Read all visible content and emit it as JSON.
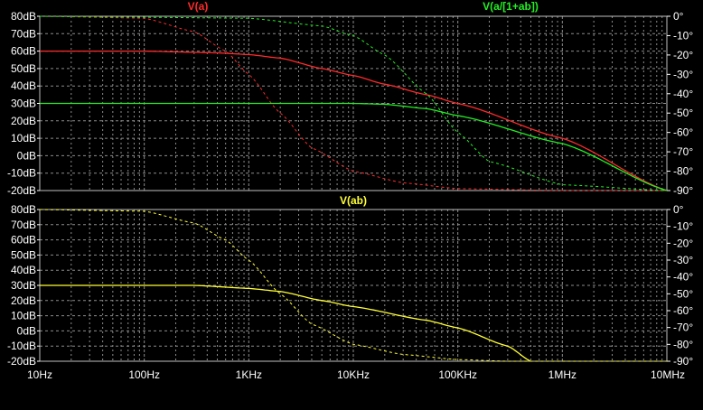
{
  "chart_data": [
    {
      "type": "line",
      "x_scale": "log",
      "xlim": [
        10,
        10000000
      ],
      "x_ticks": [
        10,
        100,
        1000,
        10000,
        100000,
        1000000,
        10000000
      ],
      "x_tick_labels": [
        "10Hz",
        "100Hz",
        "1KHz",
        "10KHz",
        "100KHz",
        "1MHz",
        "10MHz"
      ],
      "ylim_left": [
        -20,
        80
      ],
      "y_ticks_left": [
        80,
        70,
        60,
        50,
        40,
        30,
        20,
        10,
        0,
        -10,
        -20
      ],
      "y_tick_labels_left": [
        "80dB",
        "70dB",
        "60dB",
        "50dB",
        "40dB",
        "30dB",
        "20dB",
        "10dB",
        "0dB",
        "-10dB",
        "-20dB"
      ],
      "ylim_right": [
        -90,
        0
      ],
      "y_ticks_right": [
        0,
        -10,
        -20,
        -30,
        -40,
        -50,
        -60,
        -70,
        -80,
        -90
      ],
      "y_tick_labels_right": [
        "0°",
        "-10°",
        "-20°",
        "-30°",
        "-40°",
        "-50°",
        "-60°",
        "-70°",
        "-80°",
        "-90°"
      ],
      "grid": true,
      "background": "#000000",
      "grid_color": "#8c8c8c",
      "series": [
        {
          "name": "V(a)",
          "color": "#ff2a2a",
          "label_position": "top-center",
          "magnitude_db": [
            [
              10,
              60
            ],
            [
              100,
              60
            ],
            [
              500,
              59
            ],
            [
              1000,
              58
            ],
            [
              2000,
              56
            ],
            [
              5000,
              50
            ],
            [
              10000,
              46
            ],
            [
              20000,
              41
            ],
            [
              50000,
              35
            ],
            [
              100000,
              30
            ],
            [
              1000000,
              10
            ],
            [
              10000000,
              -20
            ]
          ],
          "phase_deg": [
            [
              10,
              0
            ],
            [
              100,
              -1
            ],
            [
              300,
              -8
            ],
            [
              600,
              -18
            ],
            [
              1000,
              -30
            ],
            [
              2000,
              -50
            ],
            [
              4000,
              -68
            ],
            [
              10000,
              -80
            ],
            [
              30000,
              -86
            ],
            [
              100000,
              -89
            ],
            [
              1000000,
              -90
            ],
            [
              10000000,
              -90
            ]
          ]
        },
        {
          "name": "V(a/[1+ab])",
          "color": "#22ee22",
          "label_position": "top-right",
          "magnitude_db": [
            [
              10,
              30
            ],
            [
              10000,
              30
            ],
            [
              20000,
              29.5
            ],
            [
              50000,
              27
            ],
            [
              100000,
              23
            ],
            [
              1000000,
              7
            ],
            [
              10000000,
              -20
            ]
          ],
          "phase_deg": [
            [
              10,
              0
            ],
            [
              1000,
              -1
            ],
            [
              5000,
              -5
            ],
            [
              10000,
              -10
            ],
            [
              20000,
              -20
            ],
            [
              50000,
              -40
            ],
            [
              100000,
              -60
            ],
            [
              200000,
              -75
            ],
            [
              1000000,
              -87
            ],
            [
              10000000,
              -90
            ]
          ]
        }
      ]
    },
    {
      "type": "line",
      "x_scale": "log",
      "xlim": [
        10,
        10000000
      ],
      "ylim_left": [
        -20,
        80
      ],
      "ylim_right": [
        -90,
        0
      ],
      "grid": true,
      "series": [
        {
          "name": "V(ab)",
          "color": "#ffff33",
          "label_position": "top-center",
          "magnitude_db": [
            [
              10,
              30
            ],
            [
              300,
              30
            ],
            [
              1000,
              28
            ],
            [
              2000,
              26
            ],
            [
              5000,
              20
            ],
            [
              10000,
              16
            ],
            [
              50000,
              7
            ],
            [
              100000,
              2
            ],
            [
              300000,
              -10
            ],
            [
              500000,
              -20
            ]
          ],
          "phase_deg": [
            [
              10,
              0
            ],
            [
              100,
              -1
            ],
            [
              300,
              -8
            ],
            [
              600,
              -18
            ],
            [
              1000,
              -30
            ],
            [
              2000,
              -50
            ],
            [
              4000,
              -68
            ],
            [
              10000,
              -80
            ],
            [
              30000,
              -86
            ],
            [
              100000,
              -89
            ],
            [
              300000,
              -90
            ],
            [
              10000000,
              -90
            ]
          ]
        }
      ]
    }
  ]
}
